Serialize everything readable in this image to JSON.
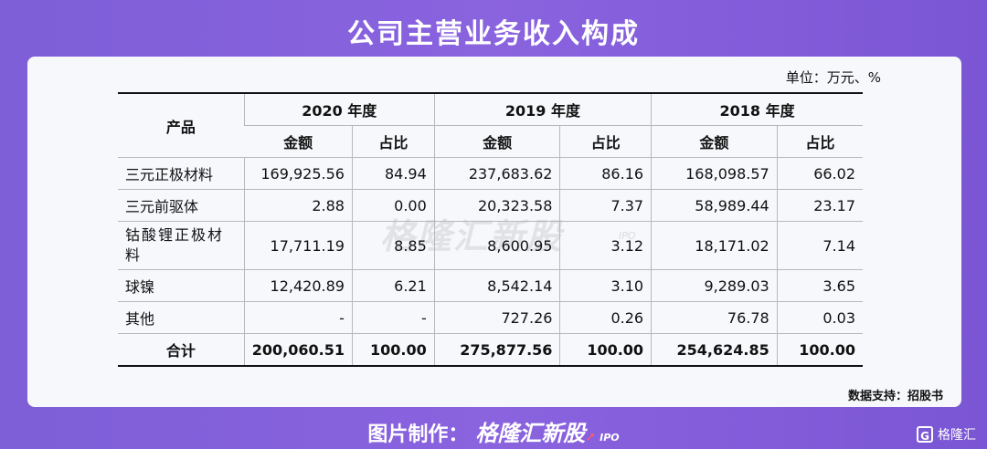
{
  "title": "公司主营业务收入构成",
  "unit_note": "单位：万元、%",
  "headers": {
    "product": "产品",
    "years": [
      "2020 年度",
      "2019 年度",
      "2018 年度"
    ],
    "sub": [
      "金额",
      "占比"
    ]
  },
  "rows": [
    {
      "name": "三元正极材料",
      "values": [
        "169,925.56",
        "84.94",
        "237,683.62",
        "86.16",
        "168,098.57",
        "66.02"
      ]
    },
    {
      "name": "三元前驱体",
      "values": [
        "2.88",
        "0.00",
        "20,323.58",
        "7.37",
        "58,989.44",
        "23.17"
      ]
    },
    {
      "name": "钴酸锂正极材料",
      "values": [
        "17,711.19",
        "8.85",
        "8,600.95",
        "3.12",
        "18,171.02",
        "7.14"
      ]
    },
    {
      "name": "球镍",
      "values": [
        "12,420.89",
        "6.21",
        "8,542.14",
        "3.10",
        "9,289.03",
        "3.65"
      ]
    },
    {
      "name": "其他",
      "values": [
        "-",
        "-",
        "727.26",
        "0.26",
        "76.78",
        "0.03"
      ]
    },
    {
      "name": "合计",
      "values": [
        "200,060.51",
        "100.00",
        "275,877.56",
        "100.00",
        "254,624.85",
        "100.00"
      ]
    }
  ],
  "source": "数据支持：招股书",
  "watermark": {
    "text": "格隆汇新股",
    "sub": "IPO"
  },
  "footer": {
    "prefix": "图片制作：",
    "brand": "格隆汇新股",
    "ipo": "IPO"
  },
  "corner_logo": {
    "icon": "G",
    "text": "格隆汇"
  }
}
